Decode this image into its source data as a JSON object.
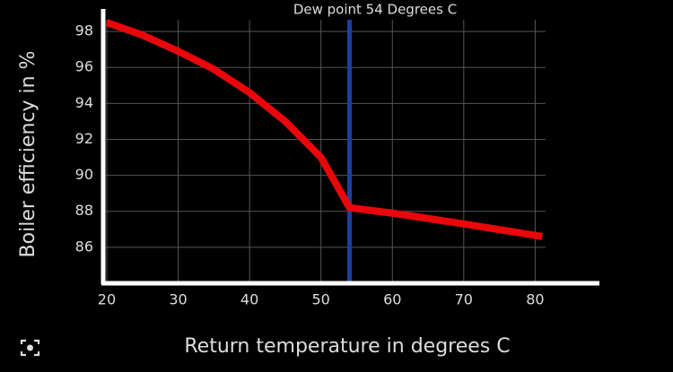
{
  "chart_data": {
    "type": "line",
    "xlabel": "Return temperature in degrees C",
    "ylabel": "Boiler efficiency in %",
    "x": [
      20,
      25,
      30,
      35,
      40,
      45,
      50,
      54,
      60,
      70,
      81
    ],
    "series": [
      {
        "color": "#e8070b",
        "values": [
          98.5,
          97.8,
          96.9,
          95.9,
          94.6,
          93.0,
          91.0,
          88.2,
          87.9,
          87.3,
          86.6
        ]
      }
    ],
    "xlim": [
      19.5,
      89
    ],
    "ylim": [
      84,
      99.25
    ],
    "xticks": [
      20,
      30,
      40,
      50,
      60,
      70,
      80
    ],
    "yticks": [
      86,
      88,
      90,
      92,
      94,
      96,
      98
    ],
    "grid": true,
    "vline": {
      "x": 54,
      "color": "#1f3f9a",
      "label": "Dew point 54 Degrees C"
    }
  }
}
